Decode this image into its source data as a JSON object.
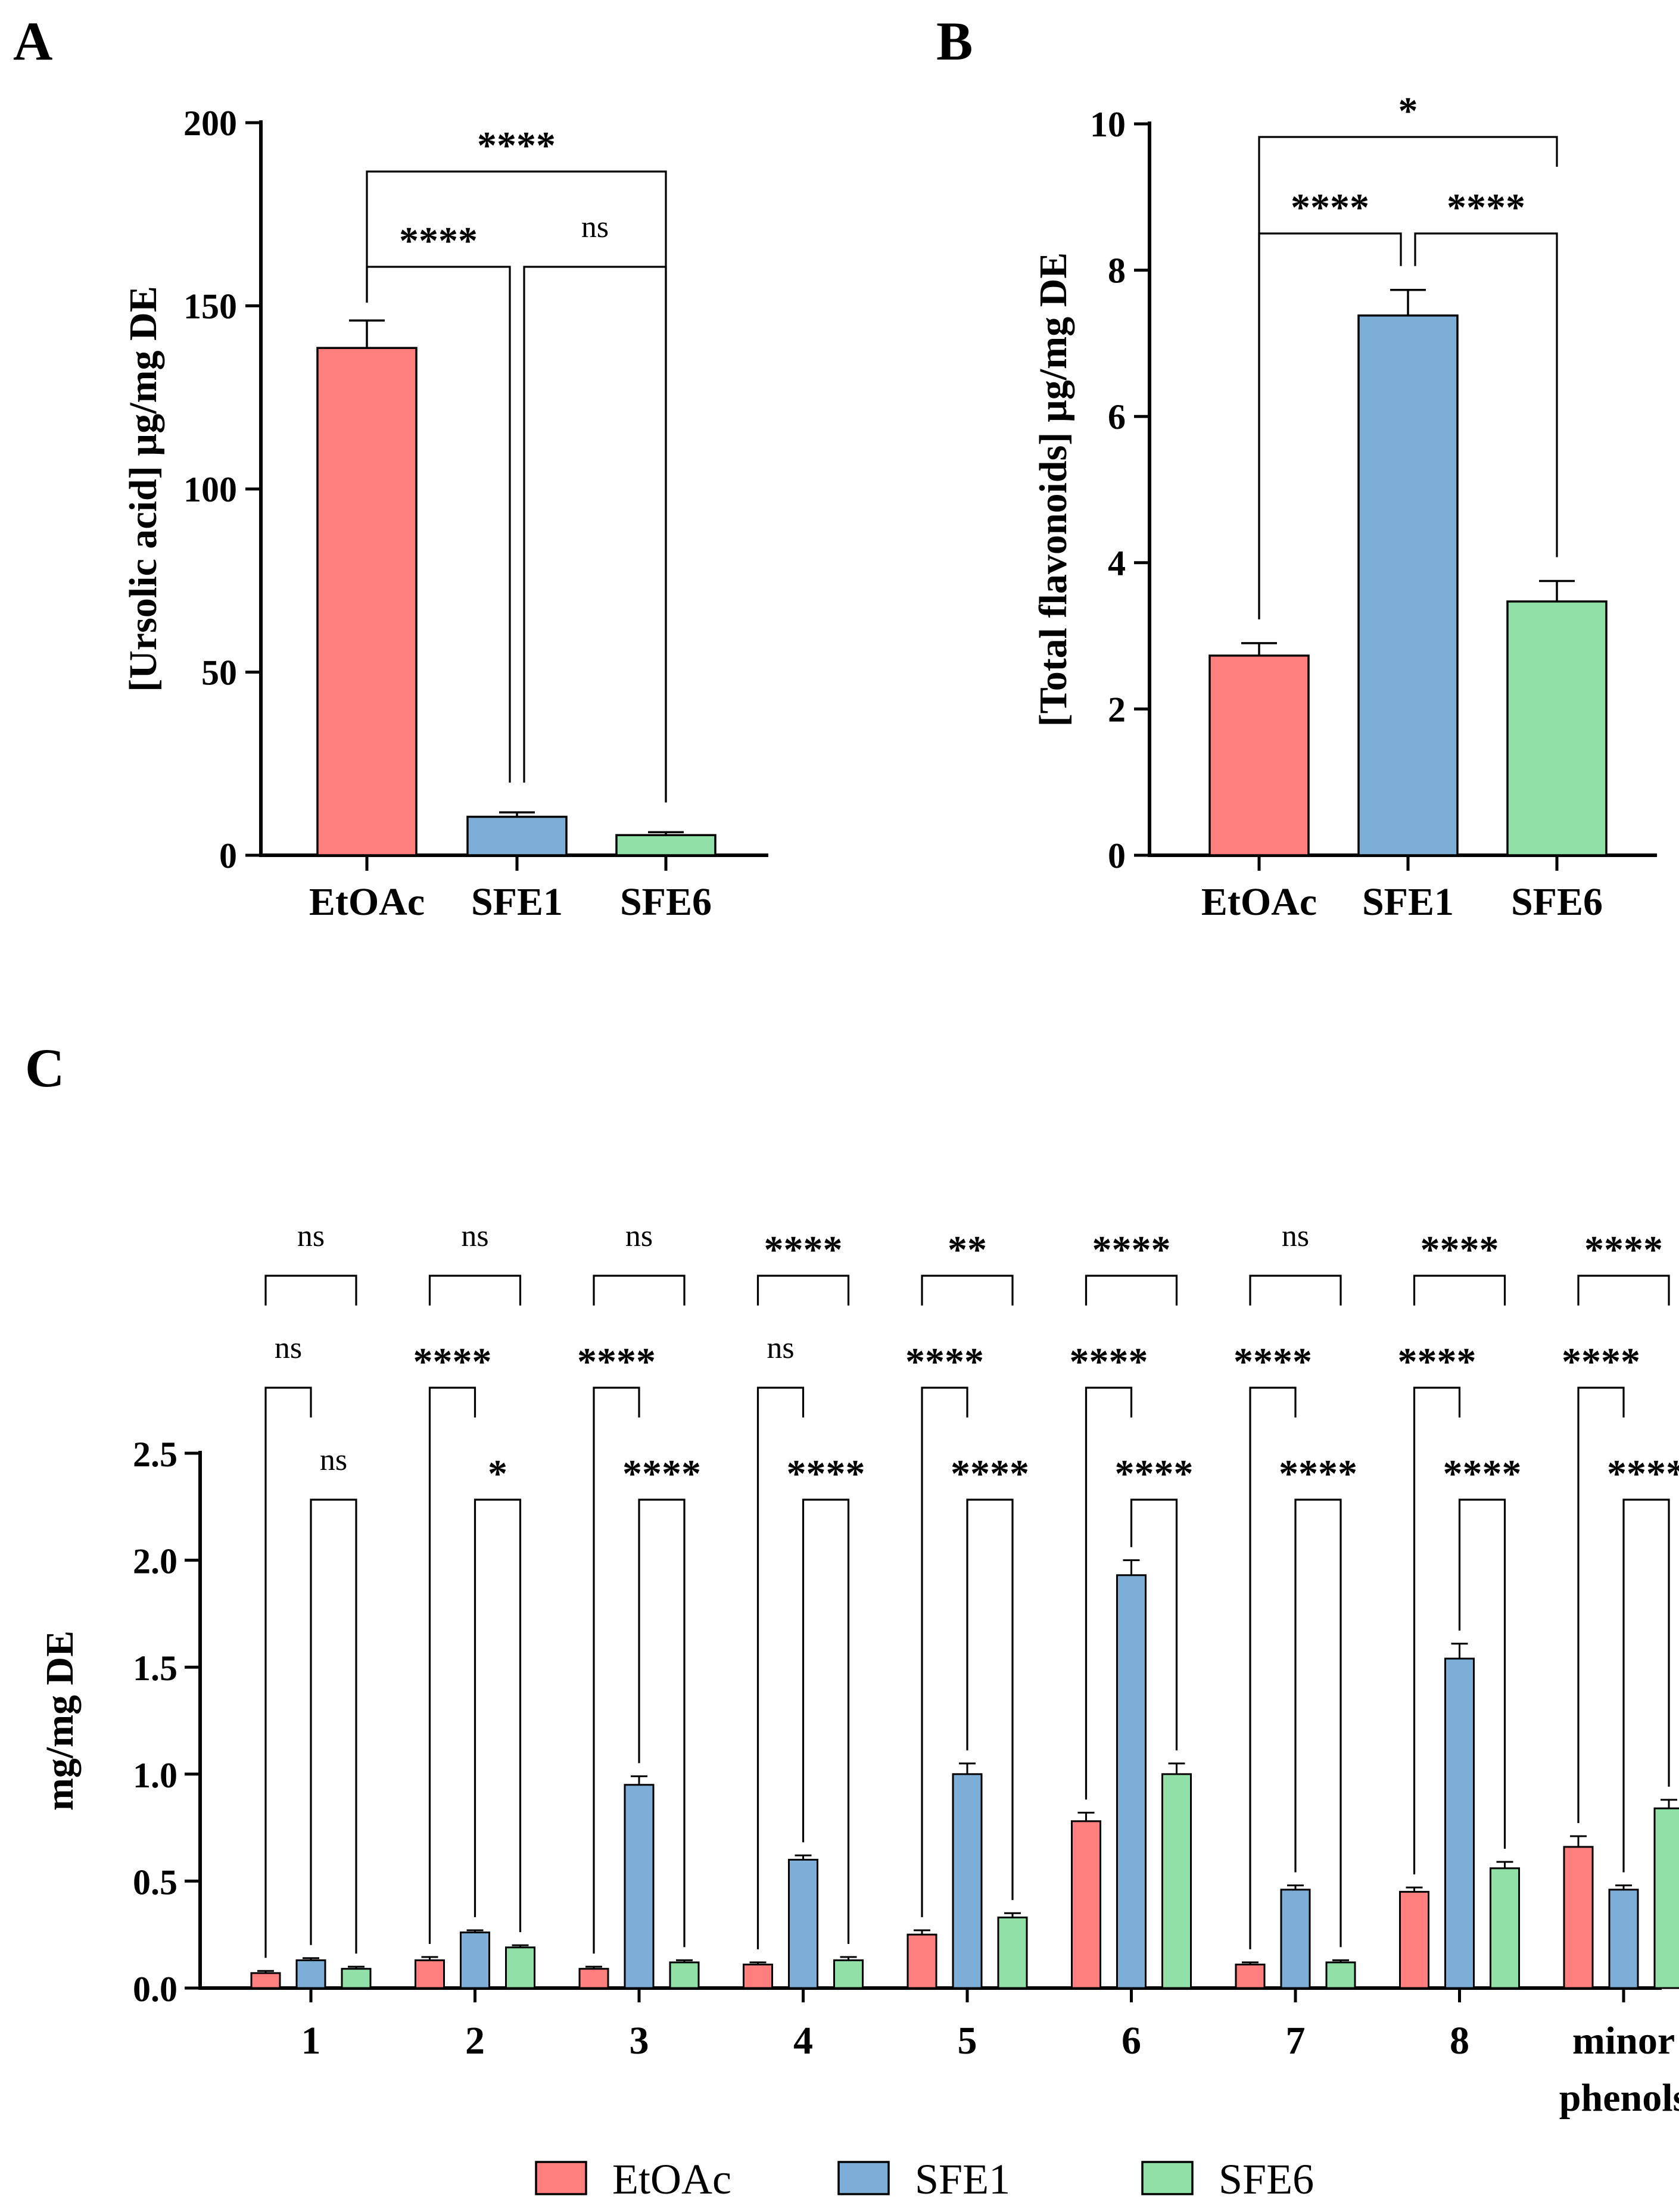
{
  "chart_data": [
    {
      "panel": "A",
      "type": "bar",
      "ylabel": "[Ursolic acid] µg/mg DE",
      "categories": [
        "EtOAc",
        "SFE1",
        "SFE6"
      ],
      "values": [
        138.5,
        10.5,
        5.5
      ],
      "errors": [
        7.5,
        1.2,
        0.8
      ],
      "ylim": [
        0,
        200
      ],
      "yticks": [
        "0",
        "50",
        "100",
        "150",
        "200"
      ],
      "colors": [
        "#FF7F7F",
        "#7DAED8",
        "#90E0A8"
      ],
      "comparisons": [
        {
          "a": 0,
          "b": 2,
          "label": "****"
        },
        {
          "a": 0,
          "b": 1,
          "label": "****"
        },
        {
          "a": 1,
          "b": 2,
          "label": "ns"
        }
      ]
    },
    {
      "panel": "B",
      "type": "bar",
      "ylabel": "[Total flavonoids] µg/mg DE",
      "categories": [
        "EtOAc",
        "SFE1",
        "SFE6"
      ],
      "values": [
        2.73,
        7.38,
        3.47
      ],
      "errors": [
        0.17,
        0.35,
        0.28
      ],
      "ylim": [
        0,
        10
      ],
      "yticks": [
        "0",
        "2",
        "4",
        "6",
        "8",
        "10"
      ],
      "colors": [
        "#FF7F7F",
        "#7DAED8",
        "#90E0A8"
      ],
      "comparisons": [
        {
          "a": 0,
          "b": 2,
          "label": "*"
        },
        {
          "a": 0,
          "b": 1,
          "label": "****"
        },
        {
          "a": 1,
          "b": 2,
          "label": "****"
        }
      ]
    },
    {
      "panel": "C",
      "type": "bar",
      "ylabel": "mg/mg DE",
      "categories": [
        "1",
        "2",
        "3",
        "4",
        "5",
        "6",
        "7",
        "8",
        "minor phenols"
      ],
      "ylim": [
        0,
        2.5
      ],
      "yticks": [
        "0.0",
        "0.5",
        "1.0",
        "1.5",
        "2.0",
        "2.5"
      ],
      "series": [
        {
          "name": "EtOAc",
          "color": "#FF7F7F",
          "values": [
            0.07,
            0.13,
            0.09,
            0.11,
            0.25,
            0.78,
            0.11,
            0.45,
            0.66
          ],
          "errors": [
            0.01,
            0.015,
            0.01,
            0.01,
            0.02,
            0.04,
            0.01,
            0.02,
            0.05
          ]
        },
        {
          "name": "SFE1",
          "color": "#7DAED8",
          "values": [
            0.13,
            0.26,
            0.95,
            0.6,
            1.0,
            1.93,
            0.46,
            1.54,
            0.46
          ],
          "errors": [
            0.01,
            0.01,
            0.04,
            0.02,
            0.05,
            0.07,
            0.02,
            0.07,
            0.02
          ]
        },
        {
          "name": "SFE6",
          "color": "#90E0A8",
          "values": [
            0.09,
            0.19,
            0.12,
            0.13,
            0.33,
            1.0,
            0.12,
            0.56,
            0.84
          ],
          "errors": [
            0.01,
            0.01,
            0.01,
            0.015,
            0.02,
            0.05,
            0.01,
            0.03,
            0.04
          ]
        }
      ],
      "significance": {
        "etoac_vs_sfe6": [
          "ns",
          "ns",
          "ns",
          "****",
          "**",
          "****",
          "ns",
          "****",
          "****"
        ],
        "etoac_vs_sfe1": [
          "ns",
          "****",
          "****",
          "ns",
          "****",
          "****",
          "****",
          "****",
          "****"
        ],
        "sfe1_vs_sfe6": [
          "ns",
          "*",
          "****",
          "****",
          "****",
          "****",
          "****",
          "****",
          "****"
        ]
      }
    }
  ],
  "panel_letters": [
    "A",
    "B",
    "C"
  ],
  "legend": {
    "entries": [
      {
        "name": "EtOAc",
        "color": "#FF7F7F"
      },
      {
        "name": "SFE1",
        "color": "#7DAED8"
      },
      {
        "name": "SFE6",
        "color": "#90E0A8"
      }
    ]
  }
}
